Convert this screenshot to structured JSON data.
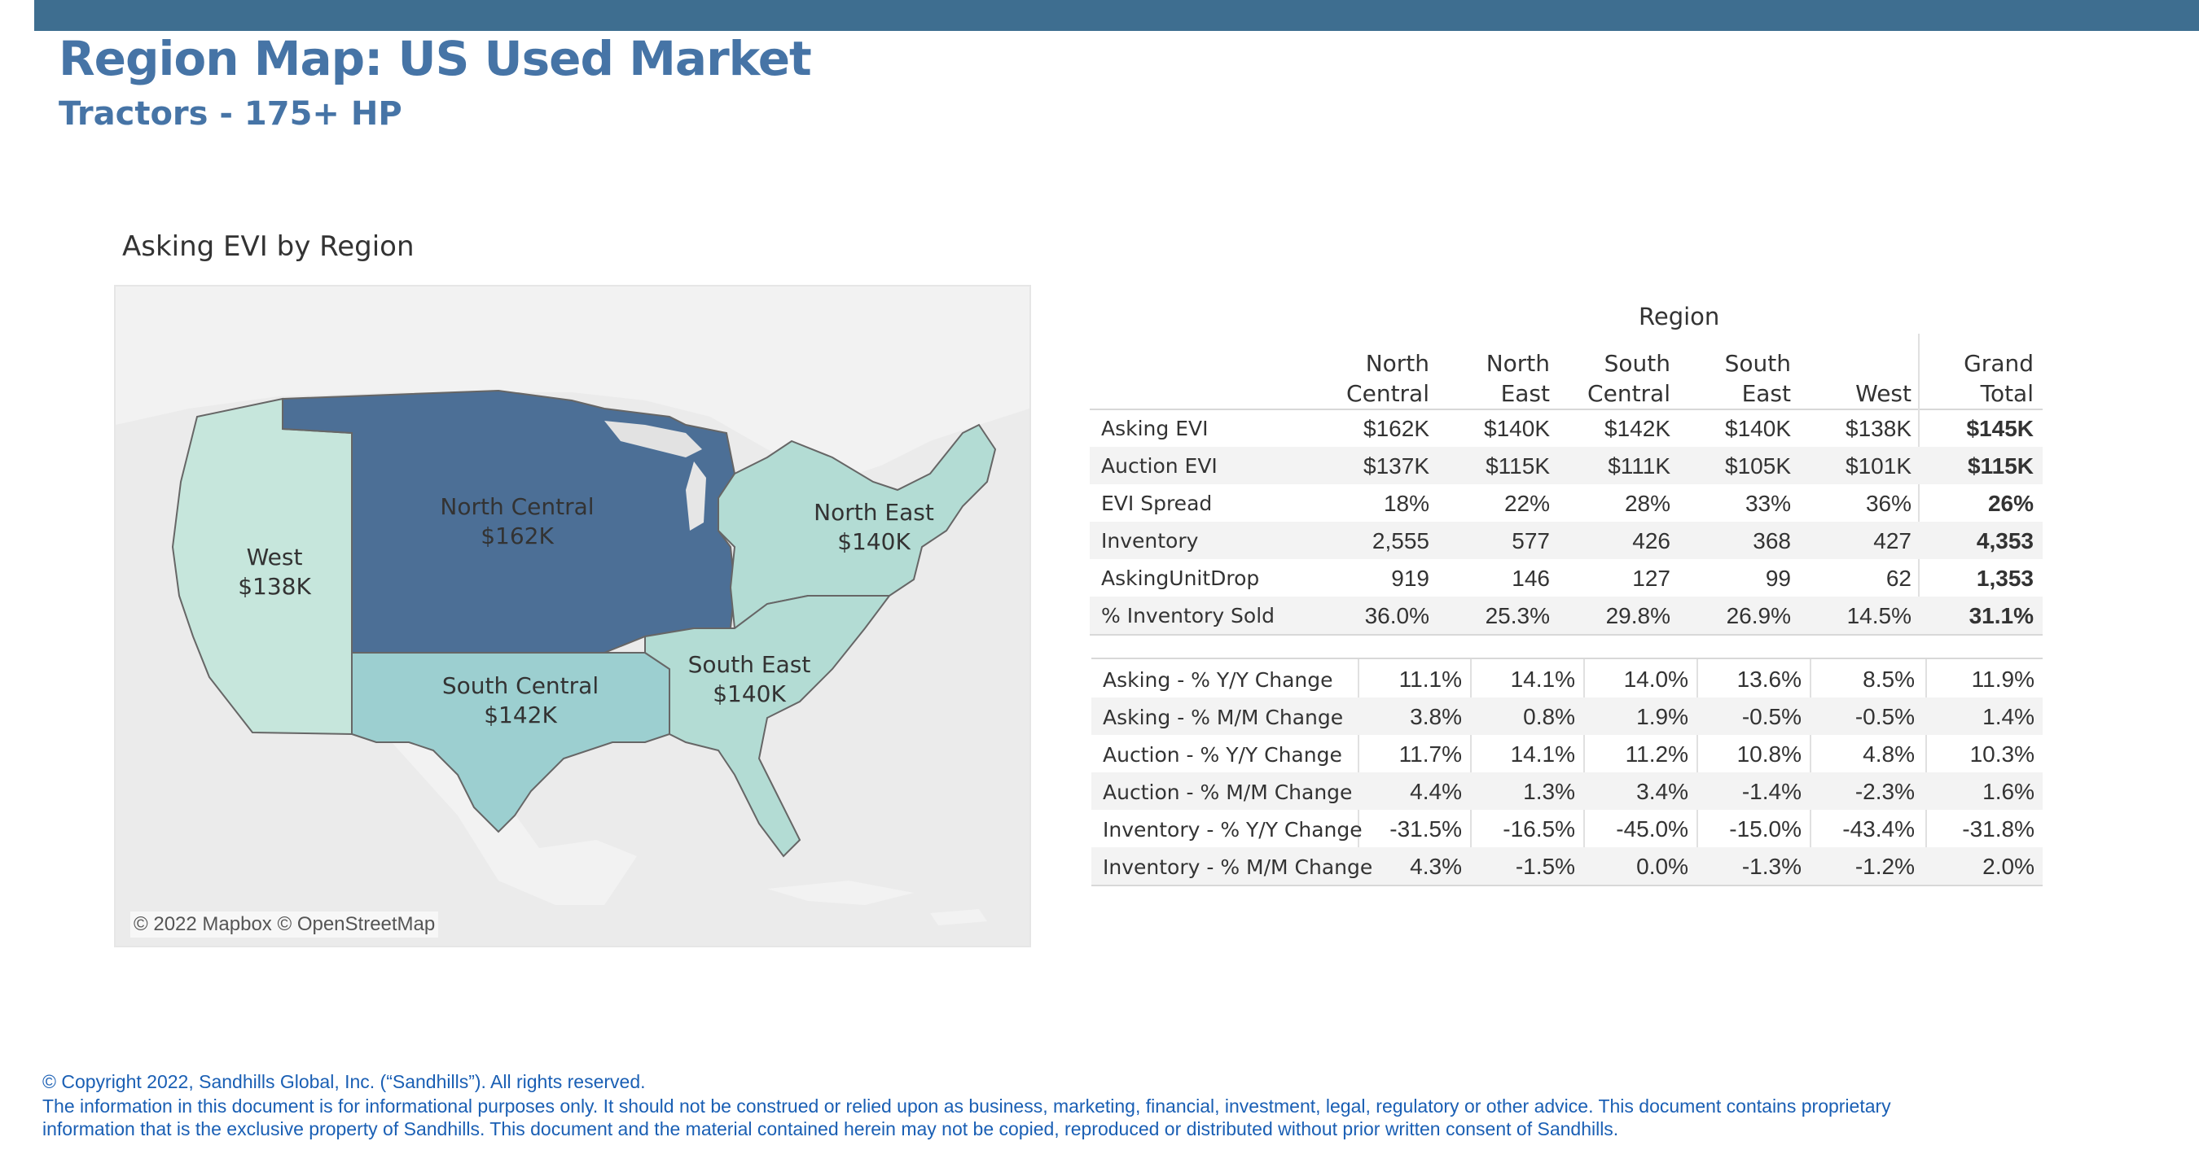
{
  "header": {
    "title": "Region Map: US Used Market",
    "subtitle": "Tractors - 175+ HP"
  },
  "map": {
    "title": "Asking EVI by Region",
    "attribution": "© 2022 Mapbox © OpenStreetMap",
    "regions": [
      {
        "name": "West",
        "value": "$138K",
        "color": "#c6e6dc"
      },
      {
        "name": "North Central",
        "value": "$162K",
        "color": "#4c6f96"
      },
      {
        "name": "North East",
        "value": "$140K",
        "color": "#b3dcd4"
      },
      {
        "name": "South Central",
        "value": "$142K",
        "color": "#9ccfd0"
      },
      {
        "name": "South East",
        "value": "$140K",
        "color": "#b3dcd4"
      }
    ]
  },
  "chart_data": {
    "type": "table",
    "title": "Region",
    "columns": [
      "North Central",
      "North East",
      "South Central",
      "South East",
      "West",
      "Grand Total"
    ],
    "column_lines": [
      [
        "North",
        "Central"
      ],
      [
        "North",
        "East"
      ],
      [
        "South",
        "Central"
      ],
      [
        "South",
        "East"
      ],
      [
        "",
        "West"
      ],
      [
        "Grand",
        "Total"
      ]
    ],
    "rows": [
      {
        "label": "Asking EVI",
        "values": [
          "$162K",
          "$140K",
          "$142K",
          "$140K",
          "$138K",
          "$145K"
        ]
      },
      {
        "label": "Auction EVI",
        "values": [
          "$137K",
          "$115K",
          "$111K",
          "$105K",
          "$101K",
          "$115K"
        ]
      },
      {
        "label": "EVI Spread",
        "values": [
          "18%",
          "22%",
          "28%",
          "33%",
          "36%",
          "26%"
        ]
      },
      {
        "label": "Inventory",
        "values": [
          "2,555",
          "577",
          "426",
          "368",
          "427",
          "4,353"
        ]
      },
      {
        "label": "AskingUnitDrop",
        "values": [
          "919",
          "146",
          "127",
          "99",
          "62",
          "1,353"
        ]
      },
      {
        "label": "% Inventory Sold",
        "values": [
          "36.0%",
          "25.3%",
          "29.8%",
          "26.9%",
          "14.5%",
          "31.1%"
        ]
      }
    ],
    "change_rows": [
      {
        "label": "Asking - % Y/Y Change",
        "values": [
          "11.1%",
          "14.1%",
          "14.0%",
          "13.6%",
          "8.5%",
          "11.9%"
        ]
      },
      {
        "label": "Asking - % M/M Change",
        "values": [
          "3.8%",
          "0.8%",
          "1.9%",
          "-0.5%",
          "-0.5%",
          "1.4%"
        ]
      },
      {
        "label": "Auction - % Y/Y Change",
        "values": [
          "11.7%",
          "14.1%",
          "11.2%",
          "10.8%",
          "4.8%",
          "10.3%"
        ]
      },
      {
        "label": "Auction - % M/M Change",
        "values": [
          "4.4%",
          "1.3%",
          "3.4%",
          "-1.4%",
          "-2.3%",
          "1.6%"
        ]
      },
      {
        "label": "Inventory - % Y/Y Change",
        "values": [
          "-31.5%",
          "-16.5%",
          "-45.0%",
          "-15.0%",
          "-43.4%",
          "-31.8%"
        ]
      },
      {
        "label": "Inventory - % M/M Change",
        "values": [
          "4.3%",
          "-1.5%",
          "0.0%",
          "-1.3%",
          "-1.2%",
          "2.0%"
        ]
      }
    ]
  },
  "footer": {
    "copyright": "© Copyright 2022, Sandhills Global, Inc. (“Sandhills”). All rights reserved.",
    "disclaimer1": "The information in this document is for informational purposes only.  It should not be construed or relied upon as business, marketing, financial, investment, legal, regulatory or other advice. This document contains proprietary",
    "disclaimer2": "information that is the exclusive property of Sandhills. This document and the material contained herein may not be copied, reproduced or distributed without prior written consent of Sandhills."
  }
}
